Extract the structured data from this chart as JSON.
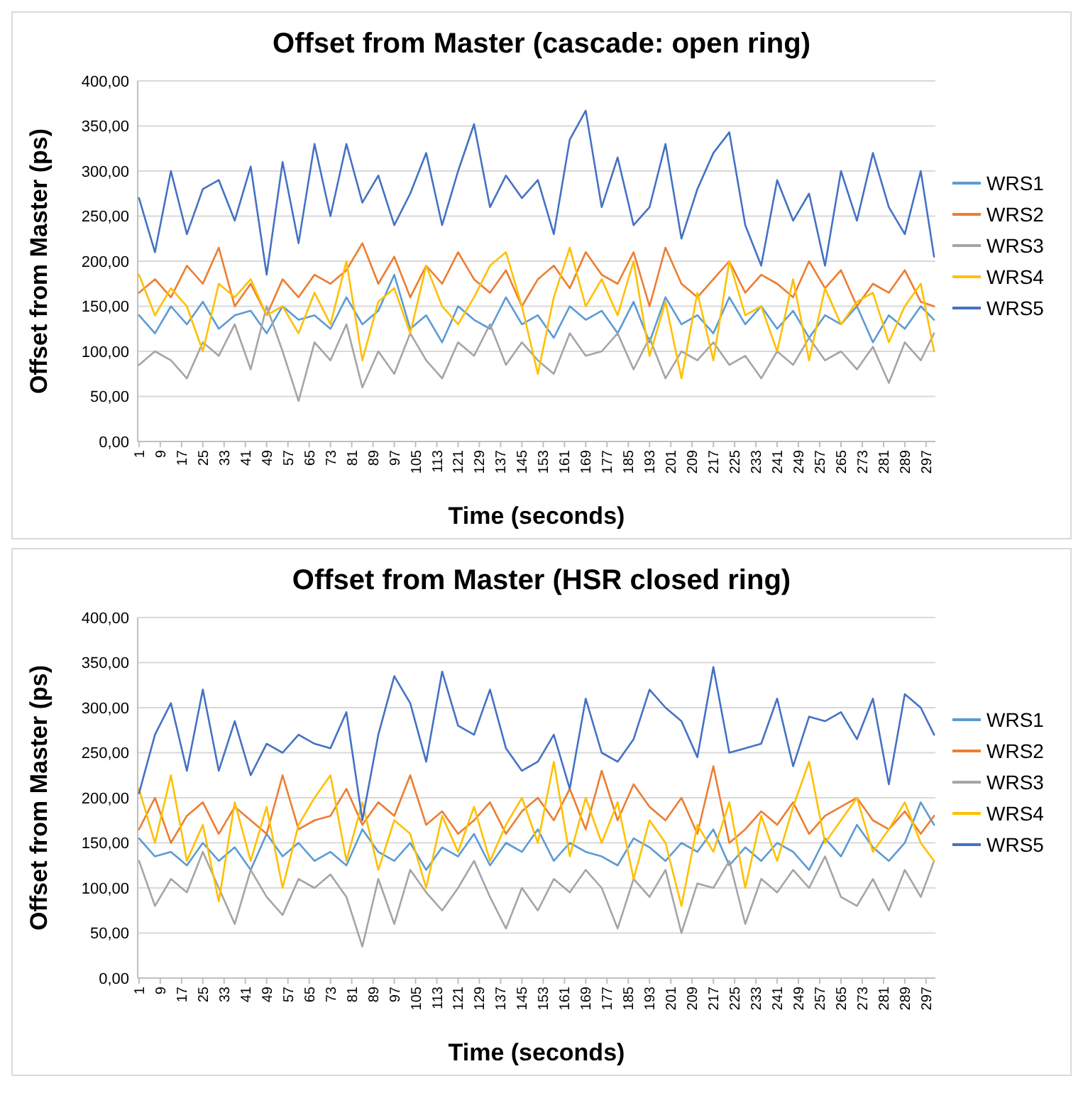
{
  "chart_data": [
    {
      "type": "line",
      "title": "Offset from Master (cascade: open ring)",
      "xlabel": "Time (seconds)",
      "ylabel": "Offset from Master (ps)",
      "grid": "y",
      "legend": "right",
      "xlim": [
        0.5,
        300.5
      ],
      "ylim": [
        0,
        400
      ],
      "xticks": [
        1,
        9,
        17,
        25,
        33,
        41,
        49,
        57,
        65,
        73,
        81,
        89,
        97,
        105,
        113,
        121,
        129,
        137,
        145,
        153,
        161,
        169,
        177,
        185,
        193,
        201,
        209,
        217,
        225,
        233,
        241,
        249,
        257,
        265,
        273,
        281,
        289,
        297
      ],
      "yticks": [
        {
          "value": 0,
          "label": "0,00"
        },
        {
          "value": 50,
          "label": "50,00"
        },
        {
          "value": 100,
          "label": "100,00"
        },
        {
          "value": 150,
          "label": "150,00"
        },
        {
          "value": 200,
          "label": "200,00"
        },
        {
          "value": 250,
          "label": "250,00"
        },
        {
          "value": 300,
          "label": "300,00"
        },
        {
          "value": 350,
          "label": "350,00"
        },
        {
          "value": 400,
          "label": "400,00"
        }
      ],
      "x": [
        1,
        7,
        13,
        19,
        25,
        31,
        37,
        43,
        49,
        55,
        61,
        67,
        73,
        79,
        85,
        91,
        97,
        103,
        109,
        115,
        121,
        127,
        133,
        139,
        145,
        151,
        157,
        163,
        169,
        175,
        181,
        187,
        193,
        199,
        205,
        211,
        217,
        223,
        229,
        235,
        241,
        247,
        253,
        259,
        265,
        271,
        277,
        283,
        289,
        295,
        300
      ],
      "series": [
        {
          "name": "WRS1",
          "color": "#5b9bd5",
          "values": [
            140,
            120,
            150,
            130,
            155,
            125,
            140,
            145,
            120,
            150,
            135,
            140,
            125,
            160,
            130,
            145,
            185,
            125,
            140,
            110,
            150,
            135,
            125,
            160,
            130,
            140,
            115,
            150,
            135,
            145,
            120,
            155,
            110,
            160,
            130,
            140,
            120,
            160,
            130,
            150,
            125,
            145,
            115,
            140,
            130,
            150,
            110,
            140,
            125,
            150,
            135
          ]
        },
        {
          "name": "WRS2",
          "color": "#ed7d31",
          "values": [
            165,
            180,
            160,
            195,
            175,
            215,
            150,
            175,
            140,
            180,
            160,
            185,
            175,
            190,
            220,
            175,
            205,
            160,
            195,
            175,
            210,
            180,
            165,
            190,
            150,
            180,
            195,
            170,
            210,
            185,
            175,
            210,
            150,
            215,
            175,
            160,
            180,
            200,
            165,
            185,
            175,
            160,
            200,
            170,
            190,
            150,
            175,
            165,
            190,
            155,
            150
          ]
        },
        {
          "name": "WRS3",
          "color": "#a5a5a5",
          "values": [
            85,
            100,
            90,
            70,
            110,
            95,
            130,
            80,
            150,
            100,
            45,
            110,
            90,
            130,
            60,
            100,
            75,
            120,
            90,
            70,
            110,
            95,
            130,
            85,
            110,
            90,
            75,
            120,
            95,
            100,
            120,
            80,
            115,
            70,
            100,
            90,
            110,
            85,
            95,
            70,
            100,
            85,
            115,
            90,
            100,
            80,
            105,
            65,
            110,
            90,
            120
          ]
        },
        {
          "name": "WRS4",
          "color": "#ffc000",
          "values": [
            185,
            140,
            170,
            150,
            100,
            175,
            160,
            180,
            140,
            150,
            120,
            165,
            130,
            200,
            90,
            155,
            170,
            120,
            195,
            150,
            130,
            160,
            195,
            210,
            150,
            75,
            160,
            215,
            150,
            180,
            140,
            200,
            95,
            155,
            70,
            165,
            90,
            200,
            140,
            150,
            100,
            180,
            90,
            170,
            130,
            155,
            165,
            110,
            150,
            175,
            100
          ]
        },
        {
          "name": "WRS5",
          "color": "#4472c4",
          "values": [
            270,
            210,
            300,
            230,
            280,
            290,
            245,
            305,
            185,
            310,
            220,
            330,
            250,
            330,
            265,
            295,
            240,
            275,
            320,
            240,
            300,
            352,
            260,
            295,
            270,
            290,
            230,
            335,
            367,
            260,
            315,
            240,
            260,
            330,
            225,
            280,
            320,
            343,
            240,
            195,
            290,
            245,
            275,
            195,
            300,
            245,
            320,
            260,
            230,
            300,
            205
          ]
        }
      ]
    },
    {
      "type": "line",
      "title": "Offset from Master (HSR closed ring)",
      "xlabel": "Time (seconds)",
      "ylabel": "Offset from Master (ps)",
      "grid": "y",
      "legend": "right",
      "xlim": [
        0.5,
        300.5
      ],
      "ylim": [
        0,
        400
      ],
      "xticks": [
        1,
        9,
        17,
        25,
        33,
        41,
        49,
        57,
        65,
        73,
        81,
        89,
        97,
        105,
        113,
        121,
        129,
        137,
        145,
        153,
        161,
        169,
        177,
        185,
        193,
        201,
        209,
        217,
        225,
        233,
        241,
        249,
        257,
        265,
        273,
        281,
        289,
        297
      ],
      "yticks": [
        {
          "value": 0,
          "label": "0,00"
        },
        {
          "value": 50,
          "label": "50,00"
        },
        {
          "value": 100,
          "label": "100,00"
        },
        {
          "value": 150,
          "label": "150,00"
        },
        {
          "value": 200,
          "label": "200,00"
        },
        {
          "value": 250,
          "label": "250,00"
        },
        {
          "value": 300,
          "label": "300,00"
        },
        {
          "value": 350,
          "label": "350,00"
        },
        {
          "value": 400,
          "label": "400,00"
        }
      ],
      "x": [
        1,
        7,
        13,
        19,
        25,
        31,
        37,
        43,
        49,
        55,
        61,
        67,
        73,
        79,
        85,
        91,
        97,
        103,
        109,
        115,
        121,
        127,
        133,
        139,
        145,
        151,
        157,
        163,
        169,
        175,
        181,
        187,
        193,
        199,
        205,
        211,
        217,
        223,
        229,
        235,
        241,
        247,
        253,
        259,
        265,
        271,
        277,
        283,
        289,
        295,
        300
      ],
      "series": [
        {
          "name": "WRS1",
          "color": "#5b9bd5",
          "values": [
            155,
            135,
            140,
            125,
            150,
            130,
            145,
            120,
            160,
            135,
            150,
            130,
            140,
            125,
            165,
            140,
            130,
            150,
            120,
            145,
            135,
            160,
            125,
            150,
            140,
            165,
            130,
            150,
            140,
            135,
            125,
            155,
            145,
            130,
            150,
            140,
            165,
            125,
            145,
            130,
            150,
            140,
            120,
            155,
            135,
            170,
            145,
            130,
            150,
            195,
            170
          ]
        },
        {
          "name": "WRS2",
          "color": "#ed7d31",
          "values": [
            165,
            200,
            150,
            180,
            195,
            160,
            190,
            175,
            160,
            225,
            165,
            175,
            180,
            210,
            170,
            195,
            180,
            225,
            170,
            185,
            160,
            175,
            195,
            160,
            185,
            200,
            175,
            210,
            165,
            230,
            175,
            215,
            190,
            175,
            200,
            160,
            235,
            150,
            165,
            185,
            170,
            195,
            160,
            180,
            190,
            200,
            175,
            165,
            185,
            160,
            180
          ]
        },
        {
          "name": "WRS3",
          "color": "#a5a5a5",
          "values": [
            130,
            80,
            110,
            95,
            140,
            100,
            60,
            120,
            90,
            70,
            110,
            100,
            115,
            90,
            35,
            110,
            60,
            120,
            95,
            75,
            100,
            130,
            90,
            55,
            100,
            75,
            110,
            95,
            120,
            100,
            55,
            110,
            90,
            120,
            50,
            105,
            100,
            130,
            60,
            110,
            95,
            120,
            100,
            135,
            90,
            80,
            110,
            75,
            120,
            90,
            130
          ]
        },
        {
          "name": "WRS4",
          "color": "#ffc000",
          "values": [
            210,
            150,
            225,
            130,
            170,
            85,
            195,
            130,
            190,
            100,
            170,
            200,
            225,
            130,
            195,
            120,
            175,
            160,
            100,
            180,
            140,
            190,
            130,
            170,
            200,
            150,
            240,
            135,
            200,
            150,
            195,
            110,
            175,
            150,
            80,
            170,
            140,
            195,
            100,
            180,
            130,
            190,
            240,
            150,
            175,
            200,
            140,
            165,
            195,
            150,
            130
          ]
        },
        {
          "name": "WRS5",
          "color": "#4472c4",
          "values": [
            205,
            270,
            305,
            230,
            320,
            230,
            285,
            225,
            260,
            250,
            270,
            260,
            255,
            295,
            175,
            270,
            335,
            305,
            240,
            340,
            280,
            270,
            320,
            255,
            230,
            240,
            270,
            210,
            310,
            250,
            240,
            265,
            320,
            300,
            285,
            245,
            345,
            250,
            255,
            260,
            310,
            235,
            290,
            285,
            295,
            265,
            310,
            215,
            315,
            300,
            270
          ]
        }
      ]
    }
  ]
}
